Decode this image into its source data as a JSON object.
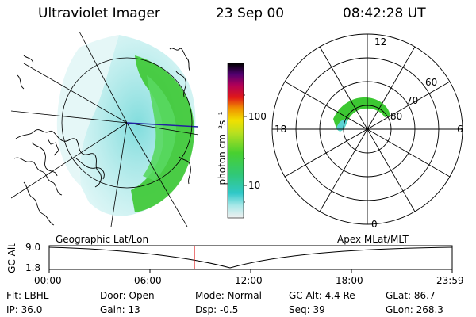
{
  "header": {
    "instrument": "Ultraviolet Imager",
    "date": "23 Sep 00",
    "time": "08:42:28 UT"
  },
  "colorbar": {
    "unit_label": "photon cm⁻²s⁻¹",
    "tick_labels": [
      "100",
      "10"
    ]
  },
  "polar_plot": {
    "mlt_labels": [
      "12",
      "18",
      "6",
      "0"
    ],
    "mlat_labels": [
      "60",
      "70",
      "80"
    ]
  },
  "timeline": {
    "left_label": "Geographic Lat/Lon",
    "right_label": "Apex MLat/MLT",
    "y_axis_label": "GC Alt",
    "y_ticks": [
      "9.0",
      "1.8"
    ],
    "x_ticks": [
      "00:00",
      "06:00",
      "12:00",
      "18:00",
      "23:59"
    ]
  },
  "info": {
    "flt": "Flt: LBHL",
    "ip": "IP: 36.0",
    "door": "Door: Open",
    "gain": "Gain: 13",
    "mode": "Mode: Normal",
    "dsp": "Dsp:    -0.5",
    "gcalt": "GC Alt: 4.4 Re",
    "seq": "Seq: 39",
    "glat": "GLat: 86.7",
    "glon": "GLon: 268.3"
  },
  "colors": {
    "aurora_green": "#3cc832",
    "aurora_cyan": "#5ad2d2",
    "marker_red": "#e02020"
  }
}
